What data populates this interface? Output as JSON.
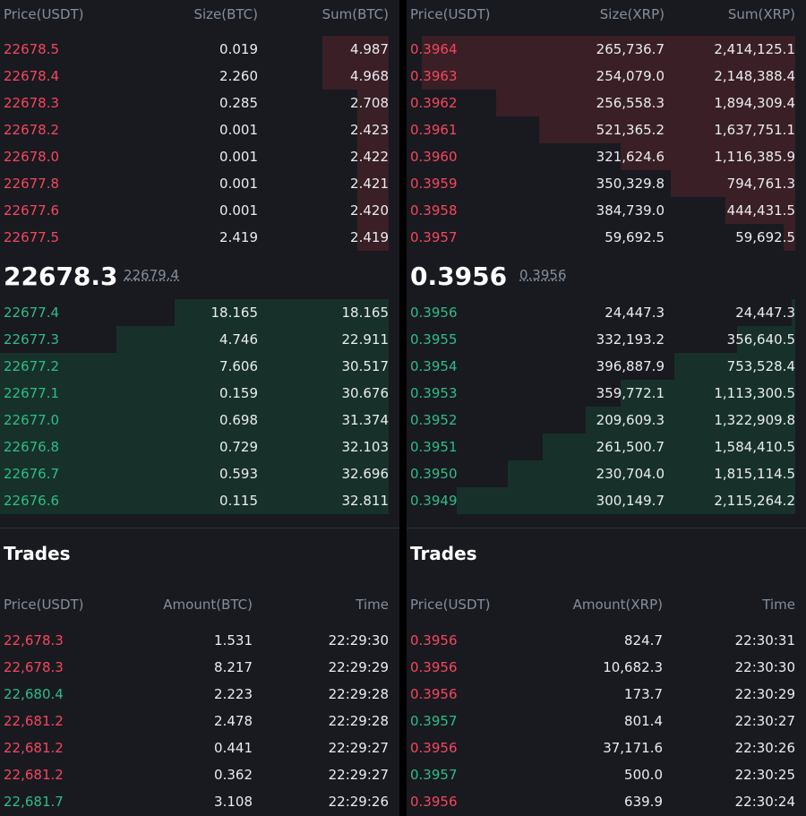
{
  "colors": {
    "ask": "#f6465d",
    "bid": "#2ebd85",
    "ask_depth": "#3a1f26",
    "bid_depth": "#17312a",
    "panel_bg": "#181a20",
    "muted_text": "#848e9c"
  },
  "panels": [
    {
      "headers": {
        "price": "Price(USDT)",
        "size": "Size(BTC)",
        "sum": "Sum(BTC)"
      },
      "asks": [
        {
          "price": "22678.5",
          "size": "0.019",
          "sum": "4.987",
          "depth": 0.17
        },
        {
          "price": "22678.4",
          "size": "2.260",
          "sum": "4.968",
          "depth": 0.17
        },
        {
          "price": "22678.3",
          "size": "0.285",
          "sum": "2.708",
          "depth": 0.08
        },
        {
          "price": "22678.2",
          "size": "0.001",
          "sum": "2.423",
          "depth": 0.08
        },
        {
          "price": "22678.0",
          "size": "0.001",
          "sum": "2.422",
          "depth": 0.08
        },
        {
          "price": "22677.8",
          "size": "0.001",
          "sum": "2.421",
          "depth": 0.08
        },
        {
          "price": "22677.6",
          "size": "0.001",
          "sum": "2.420",
          "depth": 0.08
        },
        {
          "price": "22677.5",
          "size": "2.419",
          "sum": "2.419",
          "depth": 0.08
        }
      ],
      "mid": {
        "price": "22678.3",
        "mark": "22679.4"
      },
      "bids": [
        {
          "price": "22677.4",
          "size": "18.165",
          "sum": "18.165",
          "depth": 0.55
        },
        {
          "price": "22677.3",
          "size": "4.746",
          "sum": "22.911",
          "depth": 0.7
        },
        {
          "price": "22677.2",
          "size": "7.606",
          "sum": "30.517",
          "depth": 1.0
        },
        {
          "price": "22677.1",
          "size": "0.159",
          "sum": "30.676",
          "depth": 1.0
        },
        {
          "price": "22677.0",
          "size": "0.698",
          "sum": "31.374",
          "depth": 1.0
        },
        {
          "price": "22676.8",
          "size": "0.729",
          "sum": "32.103",
          "depth": 1.0
        },
        {
          "price": "22676.7",
          "size": "0.593",
          "sum": "32.696",
          "depth": 1.0
        },
        {
          "price": "22676.6",
          "size": "0.115",
          "sum": "32.811",
          "depth": 1.0
        }
      ],
      "trades_title": "Trades",
      "trade_headers": {
        "price": "Price(USDT)",
        "amount": "Amount(BTC)",
        "time": "Time"
      },
      "trades": [
        {
          "price": "22,678.3",
          "amount": "1.531",
          "time": "22:29:30",
          "side": "sell"
        },
        {
          "price": "22,678.3",
          "amount": "8.217",
          "time": "22:29:29",
          "side": "sell"
        },
        {
          "price": "22,680.4",
          "amount": "2.223",
          "time": "22:29:28",
          "side": "buy"
        },
        {
          "price": "22,681.2",
          "amount": "2.478",
          "time": "22:29:28",
          "side": "sell"
        },
        {
          "price": "22,681.2",
          "amount": "0.441",
          "time": "22:29:27",
          "side": "sell"
        },
        {
          "price": "22,681.2",
          "amount": "0.362",
          "time": "22:29:27",
          "side": "sell"
        },
        {
          "price": "22,681.7",
          "amount": "3.108",
          "time": "22:29:26",
          "side": "buy"
        }
      ]
    },
    {
      "headers": {
        "price": "Price(USDT)",
        "size": "Size(XRP)",
        "sum": "Sum(XRP)"
      },
      "asks": [
        {
          "price": "0.3964",
          "size": "265,736.7",
          "sum": "2,414,125.1",
          "depth": 0.96
        },
        {
          "price": "0.3963",
          "size": "254,079.0",
          "sum": "2,148,388.4",
          "depth": 0.96
        },
        {
          "price": "0.3962",
          "size": "256,558.3",
          "sum": "1,894,309.4",
          "depth": 0.77
        },
        {
          "price": "0.3961",
          "size": "521,365.2",
          "sum": "1,637,751.1",
          "depth": 0.66
        },
        {
          "price": "0.3960",
          "size": "321,624.6",
          "sum": "1,116,385.9",
          "depth": 0.45
        },
        {
          "price": "0.3959",
          "size": "350,329.8",
          "sum": "794,761.3",
          "depth": 0.32
        },
        {
          "price": "0.3958",
          "size": "384,739.0",
          "sum": "444,431.5",
          "depth": 0.18
        },
        {
          "price": "0.3957",
          "size": "59,692.5",
          "sum": "59,692.5",
          "depth": 0.03
        }
      ],
      "mid": {
        "price": "0.3956",
        "mark": "0.3956"
      },
      "bids": [
        {
          "price": "0.3956",
          "size": "24,447.3",
          "sum": "24,447.3",
          "depth": 0.01
        },
        {
          "price": "0.3955",
          "size": "332,193.2",
          "sum": "356,640.5",
          "depth": 0.15
        },
        {
          "price": "0.3954",
          "size": "396,887.9",
          "sum": "753,528.4",
          "depth": 0.31
        },
        {
          "price": "0.3953",
          "size": "359,772.1",
          "sum": "1,113,300.5",
          "depth": 0.45
        },
        {
          "price": "0.3952",
          "size": "209,609.3",
          "sum": "1,322,909.8",
          "depth": 0.54
        },
        {
          "price": "0.3951",
          "size": "261,500.7",
          "sum": "1,584,410.5",
          "depth": 0.65
        },
        {
          "price": "0.3950",
          "size": "230,704.0",
          "sum": "1,815,114.5",
          "depth": 0.74
        },
        {
          "price": "0.3949",
          "size": "300,149.7",
          "sum": "2,115,264.2",
          "depth": 0.87
        }
      ],
      "trades_title": "Trades",
      "trade_headers": {
        "price": "Price(USDT)",
        "amount": "Amount(XRP)",
        "time": "Time"
      },
      "trades": [
        {
          "price": "0.3956",
          "amount": "824.7",
          "time": "22:30:31",
          "side": "sell"
        },
        {
          "price": "0.3956",
          "amount": "10,682.3",
          "time": "22:30:30",
          "side": "sell"
        },
        {
          "price": "0.3956",
          "amount": "173.7",
          "time": "22:30:29",
          "side": "sell"
        },
        {
          "price": "0.3957",
          "amount": "801.4",
          "time": "22:30:27",
          "side": "buy"
        },
        {
          "price": "0.3956",
          "amount": "37,171.6",
          "time": "22:30:26",
          "side": "sell"
        },
        {
          "price": "0.3957",
          "amount": "500.0",
          "time": "22:30:25",
          "side": "buy"
        },
        {
          "price": "0.3956",
          "amount": "639.9",
          "time": "22:30:24",
          "side": "sell"
        }
      ]
    }
  ]
}
